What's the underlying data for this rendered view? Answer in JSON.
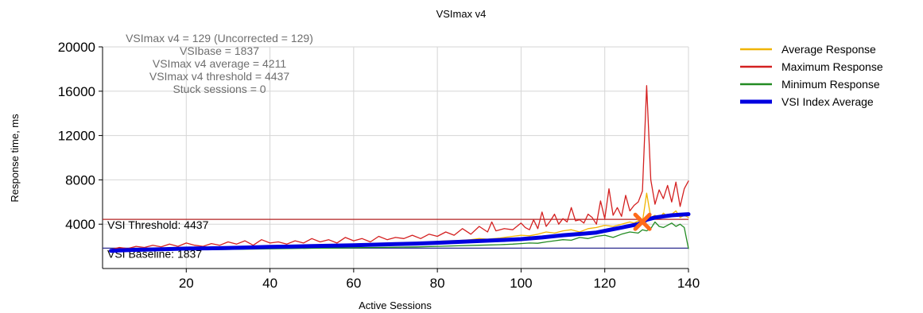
{
  "chart_data": {
    "type": "line",
    "title": "VSImax v4",
    "xlabel": "Active Sessions",
    "ylabel": "Response time, ms",
    "xlim": [
      0,
      140
    ],
    "ylim": [
      0,
      20000
    ],
    "xticks": [
      20,
      40,
      60,
      80,
      100,
      120,
      140
    ],
    "yticks": [
      4000,
      8000,
      12000,
      16000,
      20000
    ],
    "grid": true,
    "legend_position": "top-right",
    "annotations": [
      "VSImax v4 = 129 (Uncorrected = 129)",
      "VSIbase = 1837",
      "VSImax v4 average = 4211",
      "VSImax v4 threshold = 4437",
      "Stuck sessions = 0"
    ],
    "threshold": {
      "label": "VSI Threshold: 4437",
      "value": 4437,
      "color": "#b22222"
    },
    "baseline": {
      "label": "VSI Baseline: 1837",
      "value": 1837,
      "color": "#2e2e8f"
    },
    "vsimax_marker": {
      "x": 129,
      "y": 4211,
      "color": "#ff6a1a"
    },
    "series": [
      {
        "name": "Average Response",
        "color": "#f0b400",
        "x": [
          2,
          5,
          8,
          10,
          12,
          15,
          18,
          20,
          22,
          25,
          28,
          30,
          32,
          35,
          38,
          40,
          42,
          45,
          48,
          50,
          52,
          55,
          58,
          60,
          62,
          65,
          68,
          70,
          72,
          75,
          78,
          80,
          82,
          85,
          88,
          90,
          92,
          95,
          98,
          100,
          102,
          104,
          106,
          108,
          110,
          112,
          114,
          116,
          118,
          120,
          122,
          124,
          126,
          127,
          128,
          129,
          130,
          131,
          132,
          133,
          134,
          135,
          136,
          137,
          138,
          139,
          140
        ],
        "values": [
          1600,
          1650,
          1700,
          1750,
          1720,
          1780,
          1800,
          1820,
          1850,
          1870,
          1880,
          1900,
          1950,
          1970,
          2000,
          2020,
          1980,
          2050,
          2000,
          2080,
          2100,
          2120,
          2150,
          2180,
          2200,
          2220,
          2250,
          2300,
          2280,
          2350,
          2400,
          2450,
          2500,
          2520,
          2600,
          2700,
          2650,
          2750,
          2900,
          3000,
          2950,
          3100,
          3300,
          3200,
          3400,
          3500,
          3300,
          3600,
          3700,
          3900,
          3800,
          4000,
          4200,
          4100,
          4300,
          4200,
          6800,
          4600,
          4800,
          4500,
          5000,
          4700,
          4900,
          5200,
          4600,
          4800,
          4600
        ]
      },
      {
        "name": "Maximum Response",
        "color": "#d42020",
        "x": [
          2,
          4,
          6,
          8,
          10,
          12,
          14,
          16,
          18,
          20,
          22,
          24,
          26,
          28,
          30,
          32,
          34,
          36,
          38,
          40,
          42,
          44,
          46,
          48,
          50,
          52,
          54,
          56,
          58,
          60,
          62,
          64,
          66,
          68,
          70,
          72,
          74,
          76,
          78,
          80,
          82,
          84,
          86,
          88,
          90,
          92,
          93,
          94,
          96,
          98,
          100,
          101,
          102,
          103,
          104,
          105,
          106,
          107,
          108,
          109,
          110,
          111,
          112,
          113,
          114,
          115,
          116,
          117,
          118,
          119,
          120,
          121,
          122,
          123,
          124,
          125,
          126,
          127,
          128,
          129,
          130,
          131,
          132,
          133,
          134,
          135,
          136,
          137,
          138,
          139,
          140
        ],
        "values": [
          1700,
          1900,
          1800,
          2000,
          1900,
          2100,
          1950,
          2200,
          2000,
          2300,
          2100,
          2000,
          2250,
          2100,
          2400,
          2200,
          2500,
          2100,
          2600,
          2300,
          2400,
          2200,
          2500,
          2300,
          2700,
          2400,
          2600,
          2300,
          2800,
          2500,
          2700,
          2400,
          2900,
          2600,
          2800,
          2700,
          3000,
          2700,
          3100,
          2900,
          3300,
          3000,
          3600,
          3100,
          3800,
          3300,
          4200,
          3400,
          3600,
          3500,
          4100,
          3700,
          3500,
          4400,
          3600,
          5100,
          3800,
          4300,
          4900,
          4000,
          4500,
          4200,
          5500,
          4300,
          4400,
          4100,
          4900,
          4600,
          4000,
          6100,
          4500,
          7200,
          4800,
          5500,
          4700,
          6600,
          5200,
          5700,
          6000,
          7000,
          16500,
          8000,
          5800,
          7100,
          6300,
          7500,
          6000,
          7800,
          5600,
          7200,
          7900
        ]
      },
      {
        "name": "Minimum Response",
        "color": "#228b22",
        "x": [
          2,
          5,
          8,
          10,
          15,
          20,
          25,
          30,
          35,
          40,
          45,
          50,
          55,
          60,
          65,
          70,
          75,
          80,
          85,
          90,
          95,
          98,
          100,
          102,
          104,
          106,
          108,
          110,
          112,
          114,
          116,
          118,
          120,
          122,
          124,
          126,
          128,
          129,
          130,
          131,
          132,
          133,
          134,
          135,
          136,
          137,
          138,
          139,
          140
        ],
        "values": [
          1500,
          1550,
          1600,
          1620,
          1650,
          1680,
          1700,
          1720,
          1750,
          1780,
          1800,
          1830,
          1850,
          1880,
          1900,
          1920,
          1950,
          2000,
          2050,
          2100,
          2150,
          2200,
          2250,
          2300,
          2280,
          2400,
          2500,
          2600,
          2550,
          2800,
          2700,
          2900,
          3000,
          2800,
          3100,
          3300,
          3200,
          3500,
          3400,
          3600,
          4200,
          3800,
          3700,
          3900,
          4100,
          3800,
          4000,
          3700,
          1800
        ]
      },
      {
        "name": "VSI Index Average",
        "color": "#0000e0",
        "x": [
          2,
          5,
          10,
          15,
          20,
          25,
          30,
          35,
          40,
          45,
          50,
          55,
          60,
          65,
          70,
          75,
          80,
          85,
          90,
          95,
          100,
          105,
          110,
          115,
          118,
          120,
          122,
          124,
          126,
          128,
          129,
          130,
          132,
          134,
          136,
          138,
          140
        ],
        "values": [
          1600,
          1650,
          1700,
          1750,
          1800,
          1820,
          1860,
          1900,
          1950,
          1980,
          2020,
          2060,
          2100,
          2150,
          2200,
          2250,
          2320,
          2400,
          2480,
          2560,
          2650,
          2800,
          3000,
          3150,
          3250,
          3400,
          3550,
          3700,
          3850,
          4000,
          4211,
          4400,
          4600,
          4700,
          4800,
          4850,
          4900
        ]
      }
    ]
  }
}
